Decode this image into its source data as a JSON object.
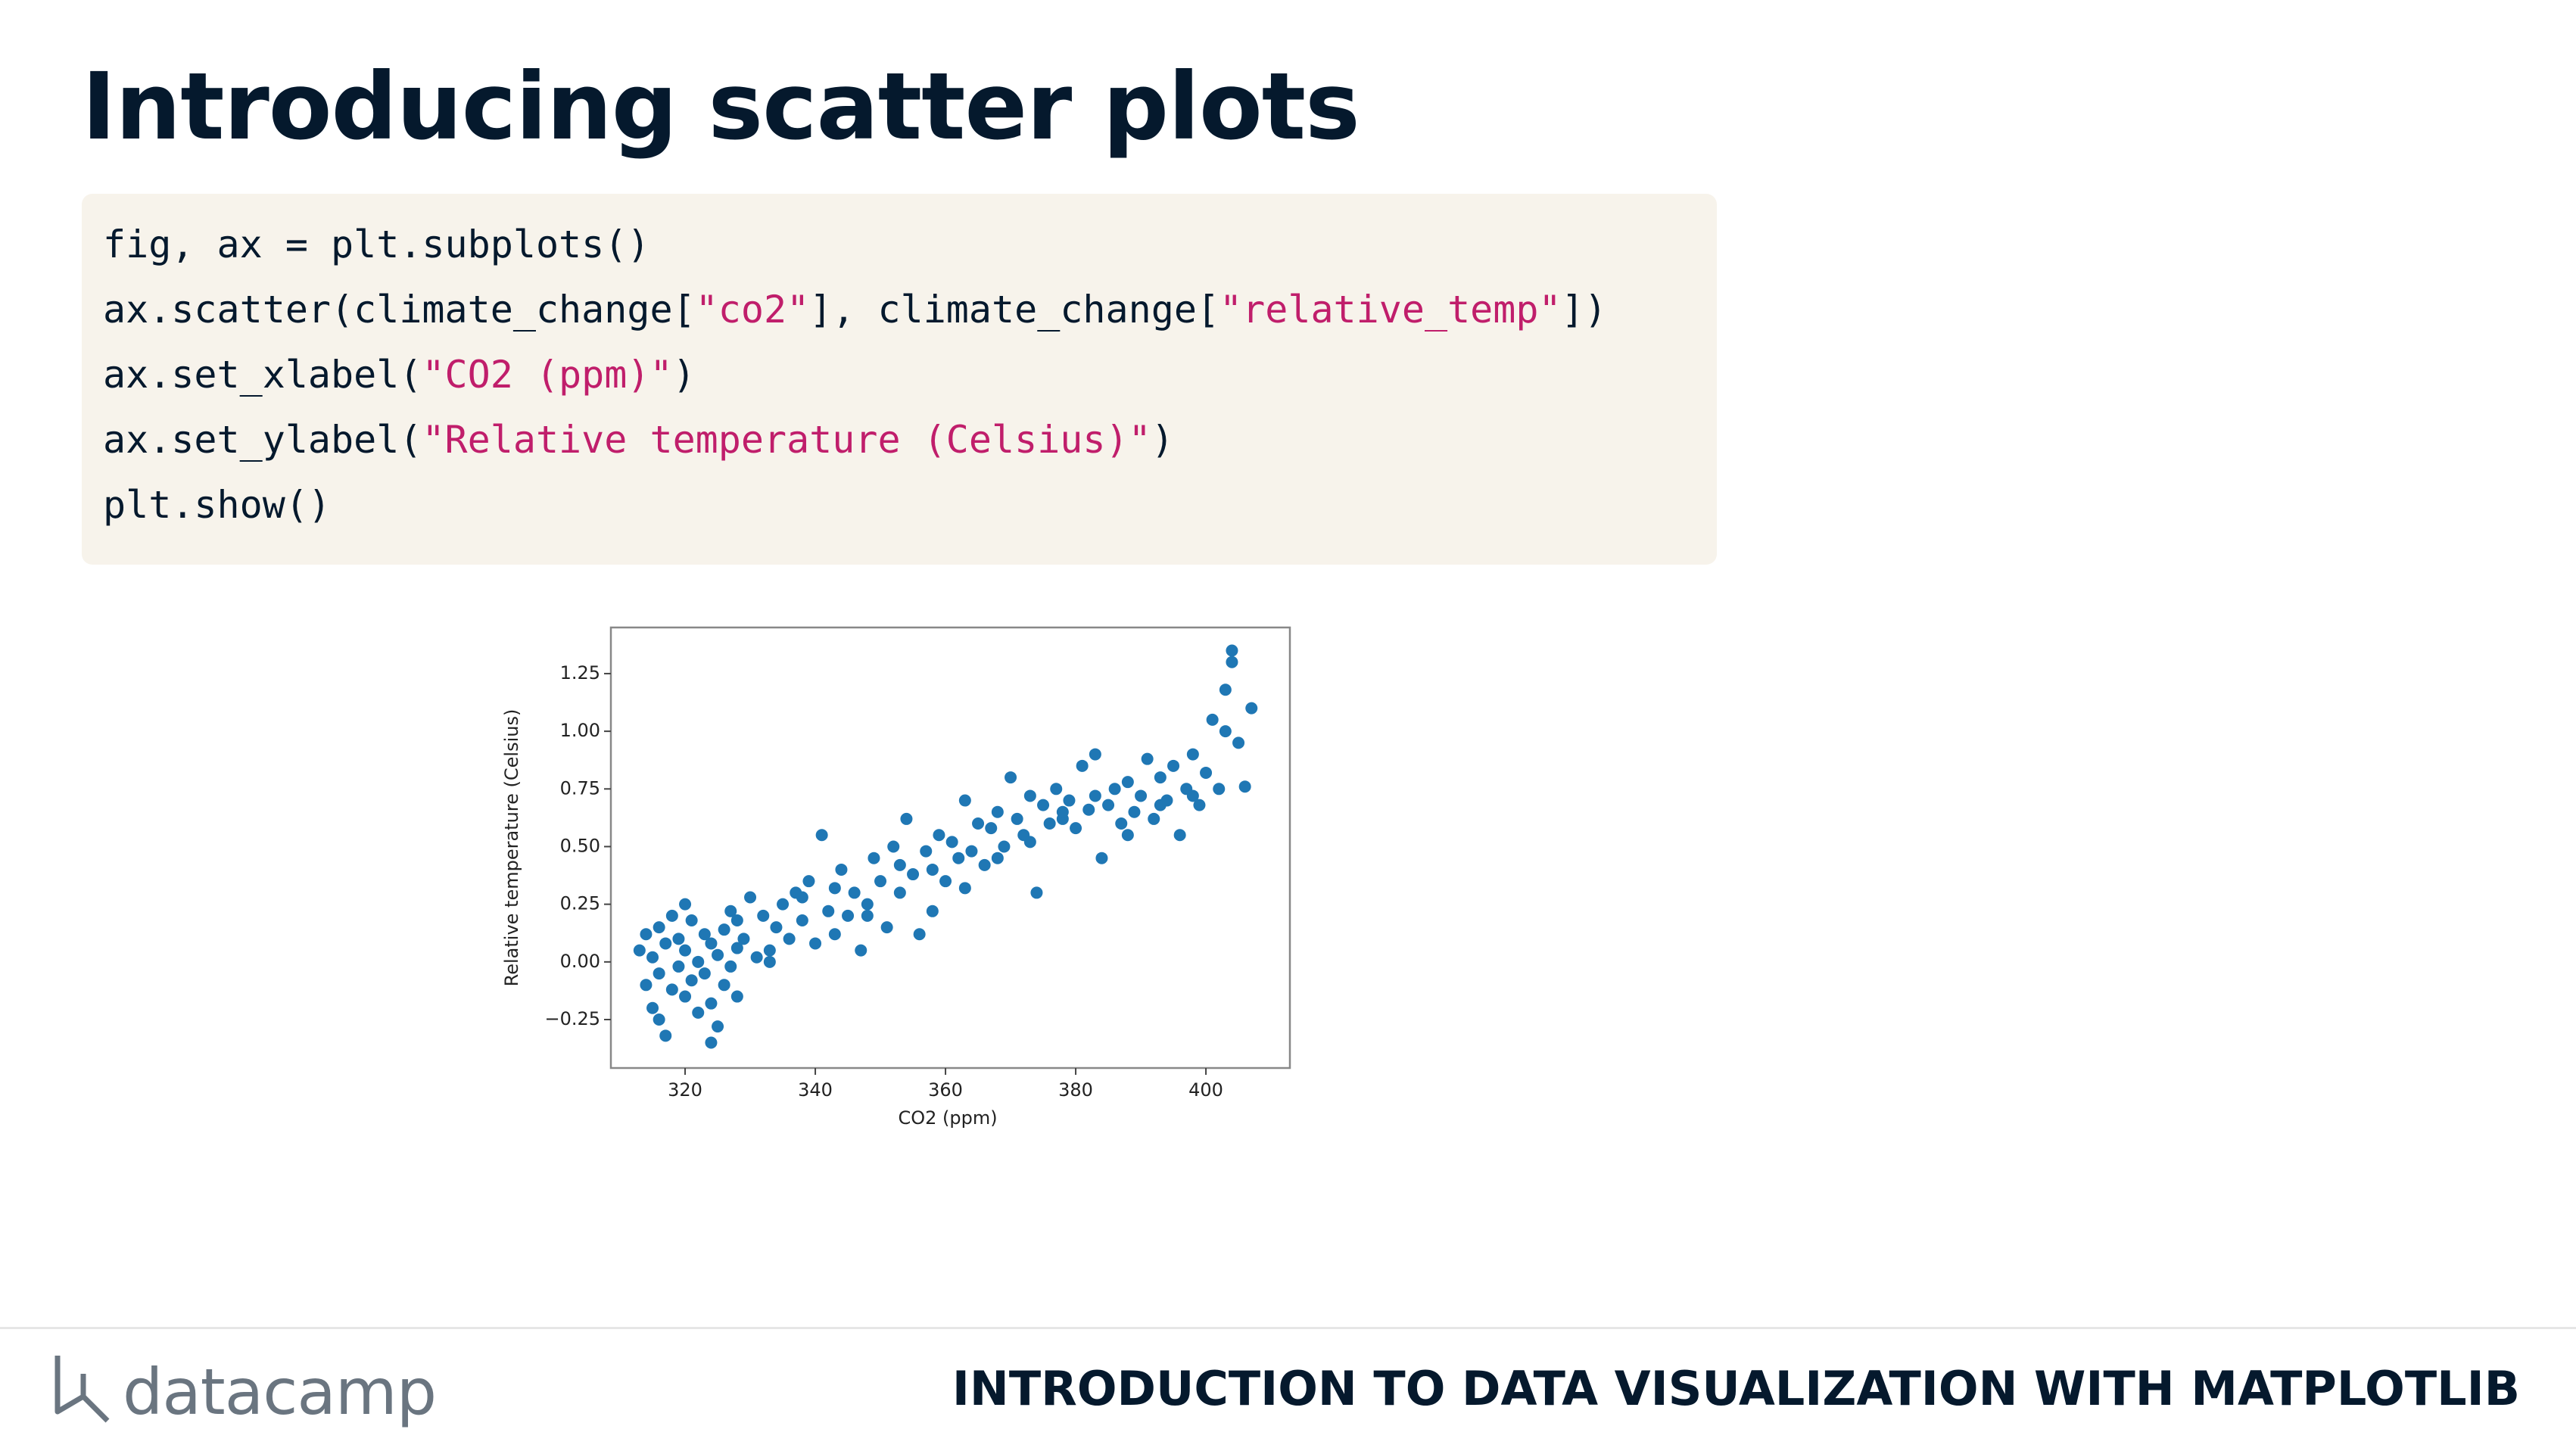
{
  "header": {
    "title": "Introducing scatter plots"
  },
  "code": {
    "lines": [
      [
        {
          "text": "fig, ax = plt.subplots()",
          "color": "#05192d"
        }
      ],
      [
        {
          "text": "ax.scatter(climate_change[",
          "color": "#05192d"
        },
        {
          "text": "\"co2\"",
          "color": "#c01e6b"
        },
        {
          "text": "], climate_change[",
          "color": "#05192d"
        },
        {
          "text": "\"relative_temp\"",
          "color": "#c01e6b"
        },
        {
          "text": "])",
          "color": "#05192d"
        }
      ],
      [
        {
          "text": "ax.set_xlabel(",
          "color": "#05192d"
        },
        {
          "text": "\"CO2 (ppm)\"",
          "color": "#c01e6b"
        },
        {
          "text": ")",
          "color": "#05192d"
        }
      ],
      [
        {
          "text": "ax.set_ylabel(",
          "color": "#05192d"
        },
        {
          "text": "\"Relative temperature (Celsius)\"",
          "color": "#c01e6b"
        },
        {
          "text": ")",
          "color": "#05192d"
        }
      ],
      [
        {
          "text": "plt.show()",
          "color": "#05192d"
        }
      ]
    ]
  },
  "chart_data": {
    "type": "scatter",
    "xlabel": "CO2 (ppm)",
    "ylabel": "Relative temperature (Celsius)",
    "color": "#1f77b4",
    "xlim": [
      308.6,
      412.9
    ],
    "ylim": [
      -0.46,
      1.45
    ],
    "xticks": [
      320,
      340,
      360,
      380,
      400
    ],
    "yticks": [
      {
        "value": -0.25,
        "label": "−0.25"
      },
      {
        "value": 0,
        "label": "0.00"
      },
      0.25,
      {
        "value": 0.5,
        "label": "0.50"
      },
      0.75,
      {
        "value": 1,
        "label": "1.00"
      },
      1.25
    ],
    "x": [
      313,
      314,
      314,
      315,
      315,
      316,
      316,
      317,
      317,
      318,
      318,
      319,
      319,
      320,
      320,
      321,
      321,
      322,
      322,
      323,
      323,
      324,
      324,
      325,
      325,
      326,
      326,
      327,
      327,
      328,
      328,
      329,
      330,
      331,
      332,
      333,
      334,
      335,
      336,
      337,
      338,
      339,
      340,
      341,
      342,
      343,
      344,
      345,
      346,
      347,
      348,
      349,
      350,
      351,
      352,
      353,
      354,
      355,
      356,
      357,
      358,
      359,
      360,
      361,
      362,
      363,
      364,
      365,
      366,
      367,
      368,
      369,
      370,
      371,
      372,
      373,
      374,
      375,
      376,
      377,
      378,
      379,
      380,
      381,
      382,
      383,
      384,
      385,
      386,
      387,
      388,
      389,
      390,
      391,
      392,
      393,
      394,
      395,
      396,
      397,
      398,
      399,
      400,
      401,
      402,
      403,
      404,
      405,
      406,
      407,
      316,
      320,
      324,
      328,
      333,
      338,
      343,
      348,
      353,
      358,
      363,
      368,
      373,
      378,
      383,
      388,
      393,
      398,
      403,
      404
    ],
    "values": [
      0.05,
      -0.1,
      0.12,
      -0.2,
      0.02,
      0.15,
      -0.05,
      -0.32,
      0.08,
      -0.12,
      0.2,
      -0.02,
      0.1,
      -0.15,
      0.05,
      0.18,
      -0.08,
      0.0,
      -0.22,
      0.12,
      -0.05,
      0.08,
      -0.18,
      0.03,
      -0.28,
      0.14,
      -0.1,
      0.22,
      -0.02,
      0.06,
      -0.15,
      0.1,
      0.28,
      0.02,
      0.2,
      0.05,
      0.15,
      0.25,
      0.1,
      0.3,
      0.18,
      0.35,
      0.08,
      0.55,
      0.22,
      0.12,
      0.4,
      0.2,
      0.3,
      0.05,
      0.25,
      0.45,
      0.35,
      0.15,
      0.5,
      0.3,
      0.62,
      0.38,
      0.12,
      0.48,
      0.4,
      0.55,
      0.35,
      0.52,
      0.45,
      0.7,
      0.48,
      0.6,
      0.42,
      0.58,
      0.65,
      0.5,
      0.8,
      0.62,
      0.55,
      0.72,
      0.3,
      0.68,
      0.6,
      0.75,
      0.62,
      0.7,
      0.58,
      0.85,
      0.66,
      0.72,
      0.45,
      0.68,
      0.75,
      0.6,
      0.78,
      0.65,
      0.72,
      0.88,
      0.62,
      0.8,
      0.7,
      0.85,
      0.55,
      0.75,
      0.9,
      0.68,
      0.82,
      1.05,
      0.75,
      1.18,
      1.35,
      0.95,
      0.76,
      1.1,
      -0.25,
      0.25,
      -0.35,
      0.18,
      0.0,
      0.28,
      0.32,
      0.2,
      0.42,
      0.22,
      0.32,
      0.45,
      0.52,
      0.65,
      0.9,
      0.55,
      0.68,
      0.72,
      1.0,
      1.3
    ]
  },
  "footer": {
    "brand": "datacamp",
    "course": "INTRODUCTION TO DATA VISUALIZATION WITH MATPLOTLIB"
  }
}
